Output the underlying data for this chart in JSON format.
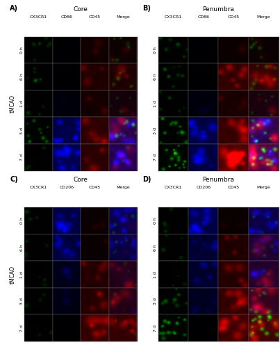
{
  "panels": [
    "A",
    "B",
    "C",
    "D"
  ],
  "panel_titles_main": [
    "Core",
    "Penumbra",
    "Core",
    "Penumbra"
  ],
  "panel_labels": [
    "A)",
    "B)",
    "C)",
    "D)"
  ],
  "col_labels_AB": [
    "CX3CR1",
    "CD86",
    "CD45",
    "Merge"
  ],
  "col_labels_CD": [
    "CX3CR1",
    "CD206",
    "CD45",
    "Merge"
  ],
  "row_labels": [
    "0 h",
    "6 h",
    "1 d",
    "3 d",
    "7 d"
  ],
  "y_label": "tMCAO",
  "font_size_panel": 7,
  "font_size_title": 6.5,
  "font_size_col": 4.5,
  "font_size_row": 4.5,
  "font_size_ylabel": 5.5,
  "intensities": {
    "A": {
      "green": [
        0.35,
        0.35,
        0.25,
        0.55,
        0.2
      ],
      "blue": [
        0.05,
        0.05,
        0.08,
        0.55,
        0.6
      ],
      "red": [
        0.15,
        0.3,
        0.2,
        0.45,
        0.4
      ],
      "merge_g": [
        0.35,
        0.35,
        0.25,
        0.55,
        0.2
      ],
      "merge_b": [
        0.05,
        0.05,
        0.08,
        0.55,
        0.6
      ],
      "merge_r": [
        0.15,
        0.3,
        0.2,
        0.45,
        0.4
      ]
    },
    "B": {
      "green": [
        0.35,
        0.4,
        0.3,
        0.65,
        0.85
      ],
      "blue": [
        0.05,
        0.05,
        0.1,
        0.55,
        0.5
      ],
      "red": [
        0.1,
        0.5,
        0.25,
        0.5,
        0.8
      ],
      "merge_g": [
        0.35,
        0.4,
        0.3,
        0.65,
        0.85
      ],
      "merge_b": [
        0.05,
        0.05,
        0.1,
        0.55,
        0.5
      ],
      "merge_r": [
        0.1,
        0.5,
        0.25,
        0.5,
        0.8
      ]
    },
    "C": {
      "green": [
        0.25,
        0.25,
        0.2,
        0.2,
        0.2
      ],
      "blue": [
        0.55,
        0.5,
        0.2,
        0.15,
        0.05
      ],
      "red": [
        0.1,
        0.1,
        0.35,
        0.35,
        0.5
      ],
      "merge_g": [
        0.25,
        0.25,
        0.2,
        0.2,
        0.2
      ],
      "merge_b": [
        0.55,
        0.5,
        0.2,
        0.15,
        0.05
      ],
      "merge_r": [
        0.1,
        0.1,
        0.35,
        0.35,
        0.5
      ]
    },
    "D": {
      "green": [
        0.25,
        0.25,
        0.2,
        0.45,
        0.8
      ],
      "blue": [
        0.55,
        0.4,
        0.35,
        0.25,
        0.05
      ],
      "red": [
        0.1,
        0.3,
        0.35,
        0.5,
        0.6
      ],
      "merge_g": [
        0.25,
        0.25,
        0.2,
        0.45,
        0.8
      ],
      "merge_b": [
        0.55,
        0.4,
        0.35,
        0.25,
        0.05
      ],
      "merge_r": [
        0.1,
        0.3,
        0.35,
        0.5,
        0.6
      ]
    }
  }
}
